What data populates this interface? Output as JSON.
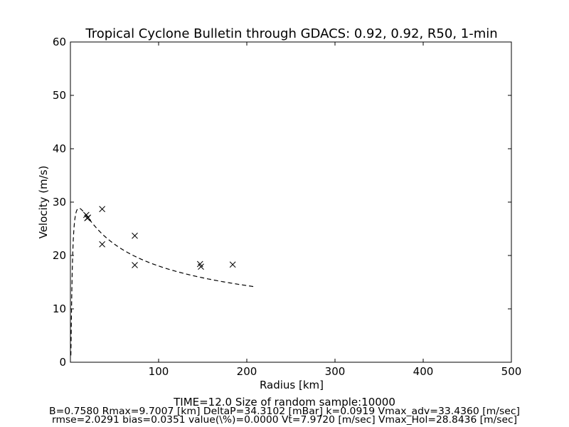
{
  "chart_data": {
    "type": "scatter",
    "title": "Tropical Cyclone Bulletin through GDACS: 0.92, 0.92, R50, 1-min",
    "xlabel": "Radius [km]",
    "ylabel": "Velocity (m/s)",
    "xlim": [
      0,
      500
    ],
    "ylim": [
      0,
      60
    ],
    "x_ticks": [
      100,
      200,
      300,
      400,
      500
    ],
    "y_ticks": [
      0,
      10,
      20,
      30,
      40,
      50,
      60
    ],
    "grid": false,
    "series": [
      {
        "marker": "x",
        "x": [
          18,
          19,
          20,
          36,
          36,
          73,
          73,
          147,
          148,
          184
        ],
        "y": [
          27.6,
          27.0,
          27.1,
          28.7,
          22.1,
          23.7,
          18.2,
          18.4,
          17.9,
          18.3
        ]
      }
    ],
    "fit_curve": {
      "style": "dashed",
      "x_range": [
        0.5,
        210
      ],
      "B": 0.758,
      "Rmax": 9.7007,
      "DeltaP": 34.3102,
      "k": 0.0919,
      "Vmax": 28.8436
    }
  },
  "footer": {
    "line1": "TIME=12.0     Size of random sample:10000",
    "line2": "B=0.7580 Rmax=9.7007 [km]  DeltaP=34.3102 [mBar] k=0.0919 Vmax_adv=33.4360 [m/sec]",
    "line3": "rmse=2.0291 bias=0.0351 value(\\%)=0.0000 Vt=7.9720 [m/sec] Vmax_Hol=28.8436 [m/sec]"
  }
}
